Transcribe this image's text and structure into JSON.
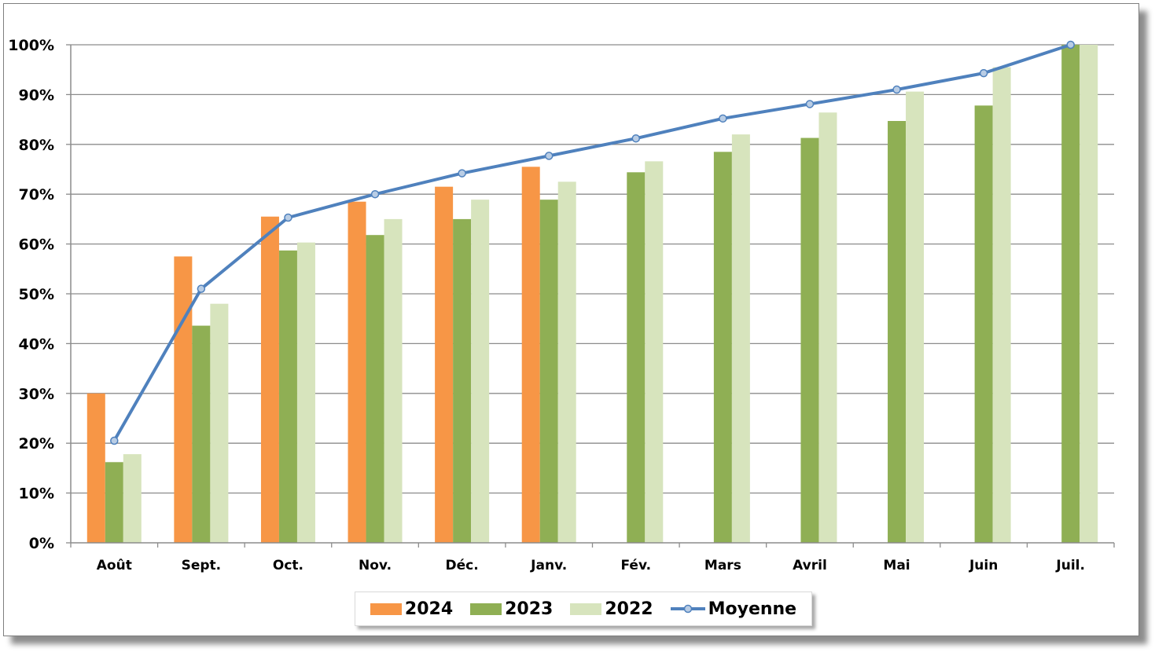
{
  "chart_data": {
    "type": "bar",
    "title": "",
    "xlabel": "",
    "ylabel": "",
    "ylim": [
      0,
      100
    ],
    "yticks": [
      0,
      10,
      20,
      30,
      40,
      50,
      60,
      70,
      80,
      90,
      100
    ],
    "ytick_labels": [
      "0%",
      "10%",
      "20%",
      "30%",
      "40%",
      "50%",
      "60%",
      "70%",
      "80%",
      "90%",
      "100%"
    ],
    "grid": true,
    "legend_position": "bottom",
    "categories": [
      "Août",
      "Sept.",
      "Oct.",
      "Nov.",
      "Déc.",
      "Janv.",
      "Fév.",
      "Mars",
      "Avril",
      "Mai",
      "Juin",
      "Juil."
    ],
    "series": [
      {
        "name": "2024",
        "type": "bar",
        "color": "#f79646",
        "values": [
          30,
          57.5,
          65.5,
          68.5,
          71.5,
          75.5,
          null,
          null,
          null,
          null,
          null,
          null
        ]
      },
      {
        "name": "2023",
        "type": "bar",
        "color": "#8faf54",
        "values": [
          16.2,
          43.6,
          58.7,
          61.8,
          65,
          68.9,
          74.4,
          78.5,
          81.3,
          84.7,
          87.8,
          100
        ]
      },
      {
        "name": "2022",
        "type": "bar",
        "color": "#d7e4bd",
        "values": [
          17.8,
          48,
          60.3,
          65,
          68.9,
          72.5,
          76.6,
          82,
          86.4,
          90.6,
          95.5,
          100
        ]
      },
      {
        "name": "Moyenne",
        "type": "line",
        "color": "#4f81bd",
        "marker_fill": "#b9cde5",
        "values": [
          20.5,
          51,
          65.3,
          70,
          74.2,
          77.7,
          81.2,
          85.2,
          88.1,
          91,
          94.3,
          100
        ]
      }
    ]
  }
}
